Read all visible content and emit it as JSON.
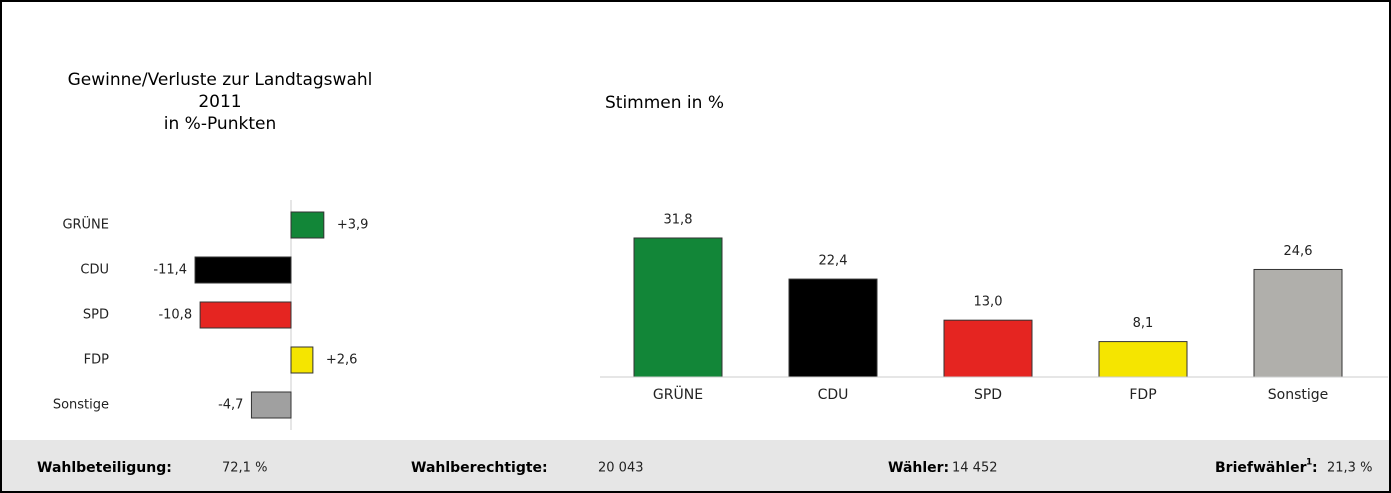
{
  "chart_data": [
    {
      "type": "hbar",
      "title": [
        "Gewinne/Verluste zur Landtagswahl",
        "2011",
        "in %-Punkten"
      ],
      "categories": [
        "GRÜNE",
        "CDU",
        "SPD",
        "FDP",
        "Sonstige"
      ],
      "values": [
        3.9,
        -11.4,
        -10.8,
        2.6,
        -4.7
      ],
      "value_labels": [
        "+3,9",
        "-11,4",
        "-10,8",
        "+2,6",
        "-4,7"
      ],
      "colors": [
        "#128638",
        "#000000",
        "#e52521",
        "#f5e500",
        "#a0a0a0"
      ],
      "xlim": [
        -12,
        12
      ]
    },
    {
      "type": "bar",
      "title": "Stimmen in %",
      "categories": [
        "GRÜNE",
        "CDU",
        "SPD",
        "FDP",
        "Sonstige"
      ],
      "values": [
        31.8,
        22.4,
        13.0,
        8.1,
        24.6
      ],
      "value_labels": [
        "31,8",
        "22,4",
        "13,0",
        "8,1",
        "24,6"
      ],
      "colors": [
        "#128638",
        "#000000",
        "#e52521",
        "#f5e500",
        "#b0afab"
      ],
      "ylim": [
        0,
        35
      ]
    }
  ],
  "footer": {
    "turnout": {
      "label": "Wahlbeteiligung:",
      "value": "72,1 %"
    },
    "eligible": {
      "label": "Wahlberechtigte:",
      "value": "20 043"
    },
    "voters": {
      "label": "Wähler:",
      "value": "14 452"
    },
    "postal": {
      "label": "Briefwähler",
      "note": "1",
      "colon": ":",
      "value": "21,3 %"
    }
  }
}
